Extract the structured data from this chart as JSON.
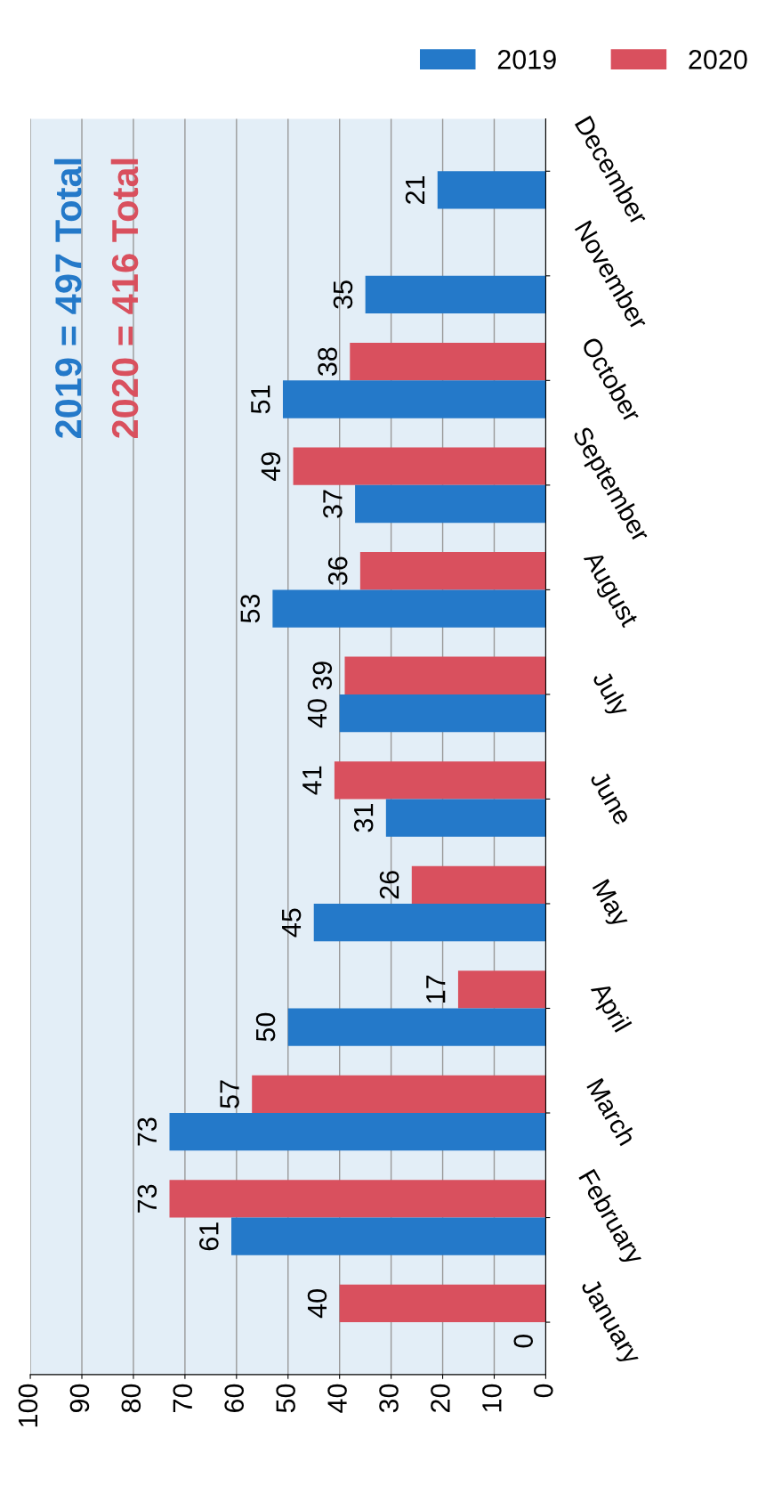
{
  "chart_data": {
    "type": "bar",
    "orientation": "horizontal",
    "categories": [
      "December",
      "November",
      "October",
      "September",
      "August",
      "July",
      "June",
      "May",
      "April",
      "March",
      "February",
      "January"
    ],
    "series": [
      {
        "name": "2020",
        "color": "#d9505e",
        "values": [
          null,
          null,
          38,
          49,
          36,
          39,
          41,
          26,
          17,
          57,
          73,
          40
        ]
      },
      {
        "name": "2019",
        "color": "#2479c9",
        "values": [
          21,
          35,
          51,
          37,
          53,
          40,
          31,
          45,
          50,
          73,
          61,
          0
        ]
      }
    ],
    "xlim": [
      100,
      0
    ],
    "xticks": [
      0,
      10,
      20,
      30,
      40,
      50,
      60,
      70,
      80,
      90,
      100
    ],
    "grid": "x",
    "legend": "top right",
    "data_labels": true,
    "annotations": [
      "2019 = 497 Total",
      "2020 = 416 Total"
    ]
  }
}
